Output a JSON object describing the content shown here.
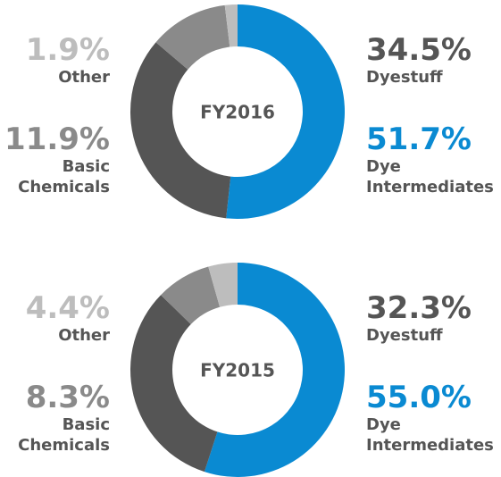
{
  "chart_data": [
    {
      "type": "pie",
      "title": "FY2016",
      "categories": [
        "Dye Intermediates",
        "Dyestuff",
        "Basic Chemicals",
        "Other"
      ],
      "values": [
        51.7,
        34.5,
        11.9,
        1.9
      ],
      "value_labels": [
        "51.7%",
        "34.5%",
        "11.9%",
        "1.9%"
      ],
      "colors": [
        "#0a8ad2",
        "#555555",
        "#8a8a8a",
        "#bdbdbd"
      ]
    },
    {
      "type": "pie",
      "title": "FY2015",
      "categories": [
        "Dye Intermediates",
        "Dyestuff",
        "Basic Chemicals",
        "Other"
      ],
      "values": [
        55.0,
        32.3,
        8.3,
        4.4
      ],
      "value_labels": [
        "55.0%",
        "32.3%",
        "8.3%",
        "4.4%"
      ],
      "colors": [
        "#0a8ad2",
        "#555555",
        "#8a8a8a",
        "#bdbdbd"
      ]
    }
  ]
}
